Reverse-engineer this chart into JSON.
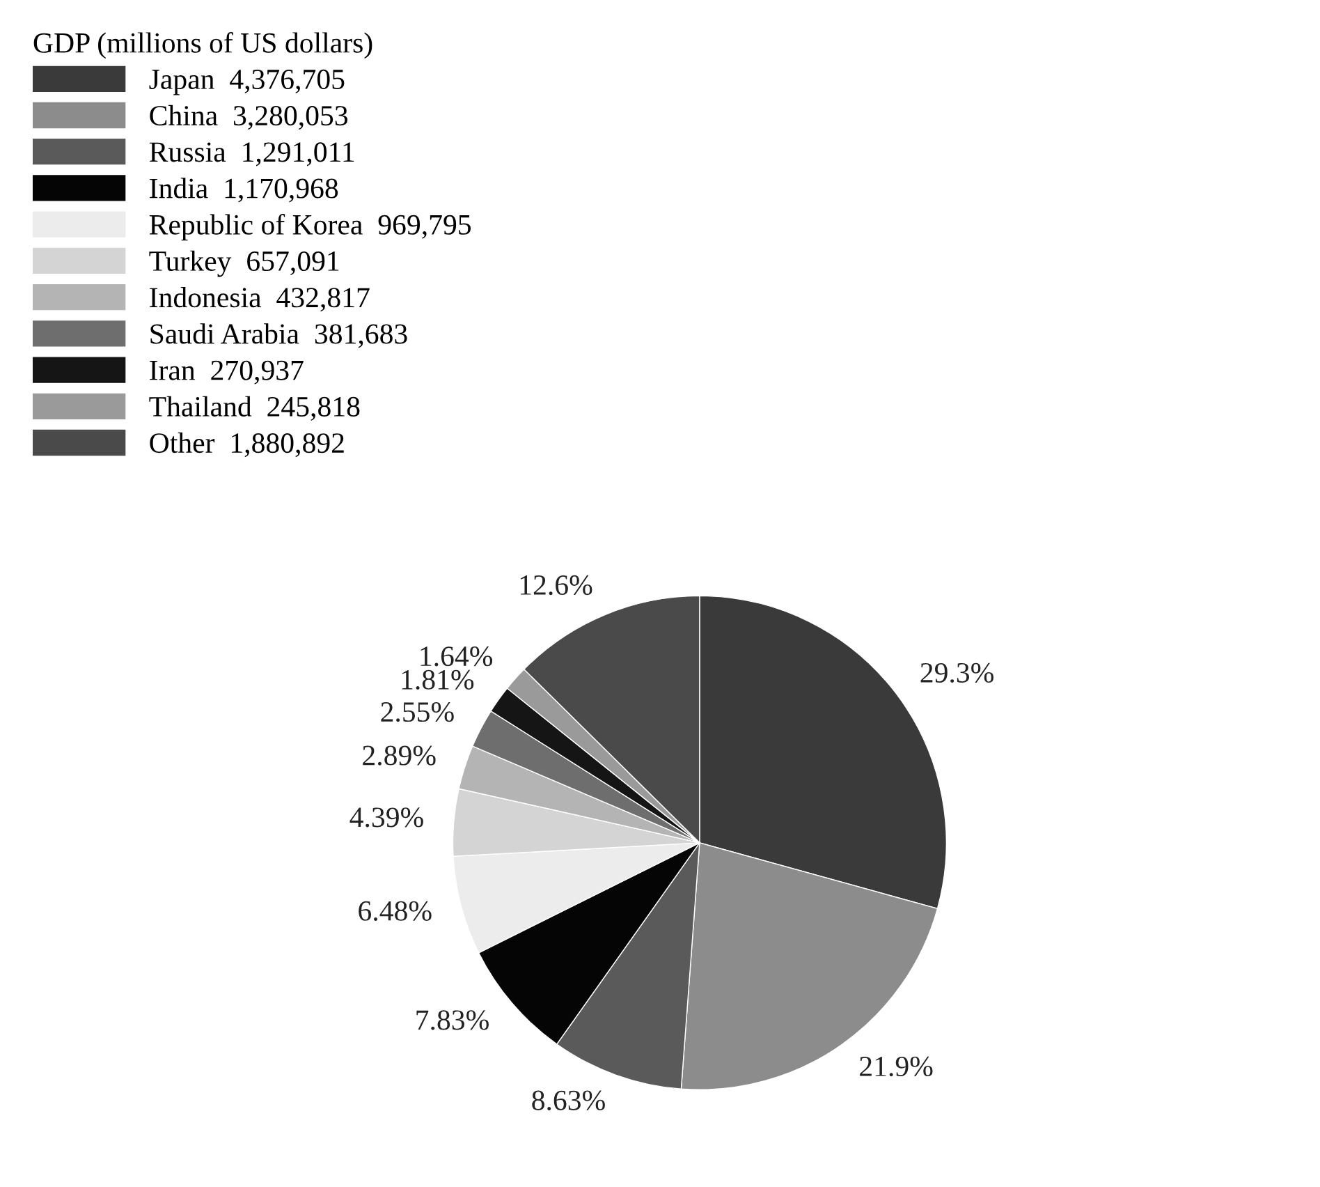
{
  "chart_data": {
    "type": "pie",
    "legend_title": "GDP (millions of US dollars)",
    "legend": "top left",
    "categories": [
      "Japan  4,376,705",
      "China  3,280,053",
      "Russia  1,291,011",
      "India  1,170,968",
      "Republic of Korea  969,795",
      "Turkey  657,091",
      "Indonesia  432,817",
      "Saudi Arabia  381,683",
      "Iran  270,937",
      "Thailand  245,818",
      "Other  1,880,892"
    ],
    "values": [
      29.3,
      21.9,
      8.63,
      7.83,
      6.48,
      4.39,
      2.89,
      2.55,
      1.81,
      1.64,
      12.6
    ],
    "colors": [
      "#3a3a3a",
      "#8c8c8c",
      "#5a5a5a",
      "#050505",
      "#ececec",
      "#d4d4d4",
      "#b4b4b4",
      "#6e6e6e",
      "#151515",
      "#9a9a9a",
      "#4a4a4a"
    ],
    "value_labels": [
      "29.3%",
      "21.9%",
      "8.63%",
      "7.83%",
      "6.48%",
      "4.39%",
      "2.89%",
      "2.55%",
      "1.81%",
      "1.64%",
      "12.6%"
    ]
  }
}
